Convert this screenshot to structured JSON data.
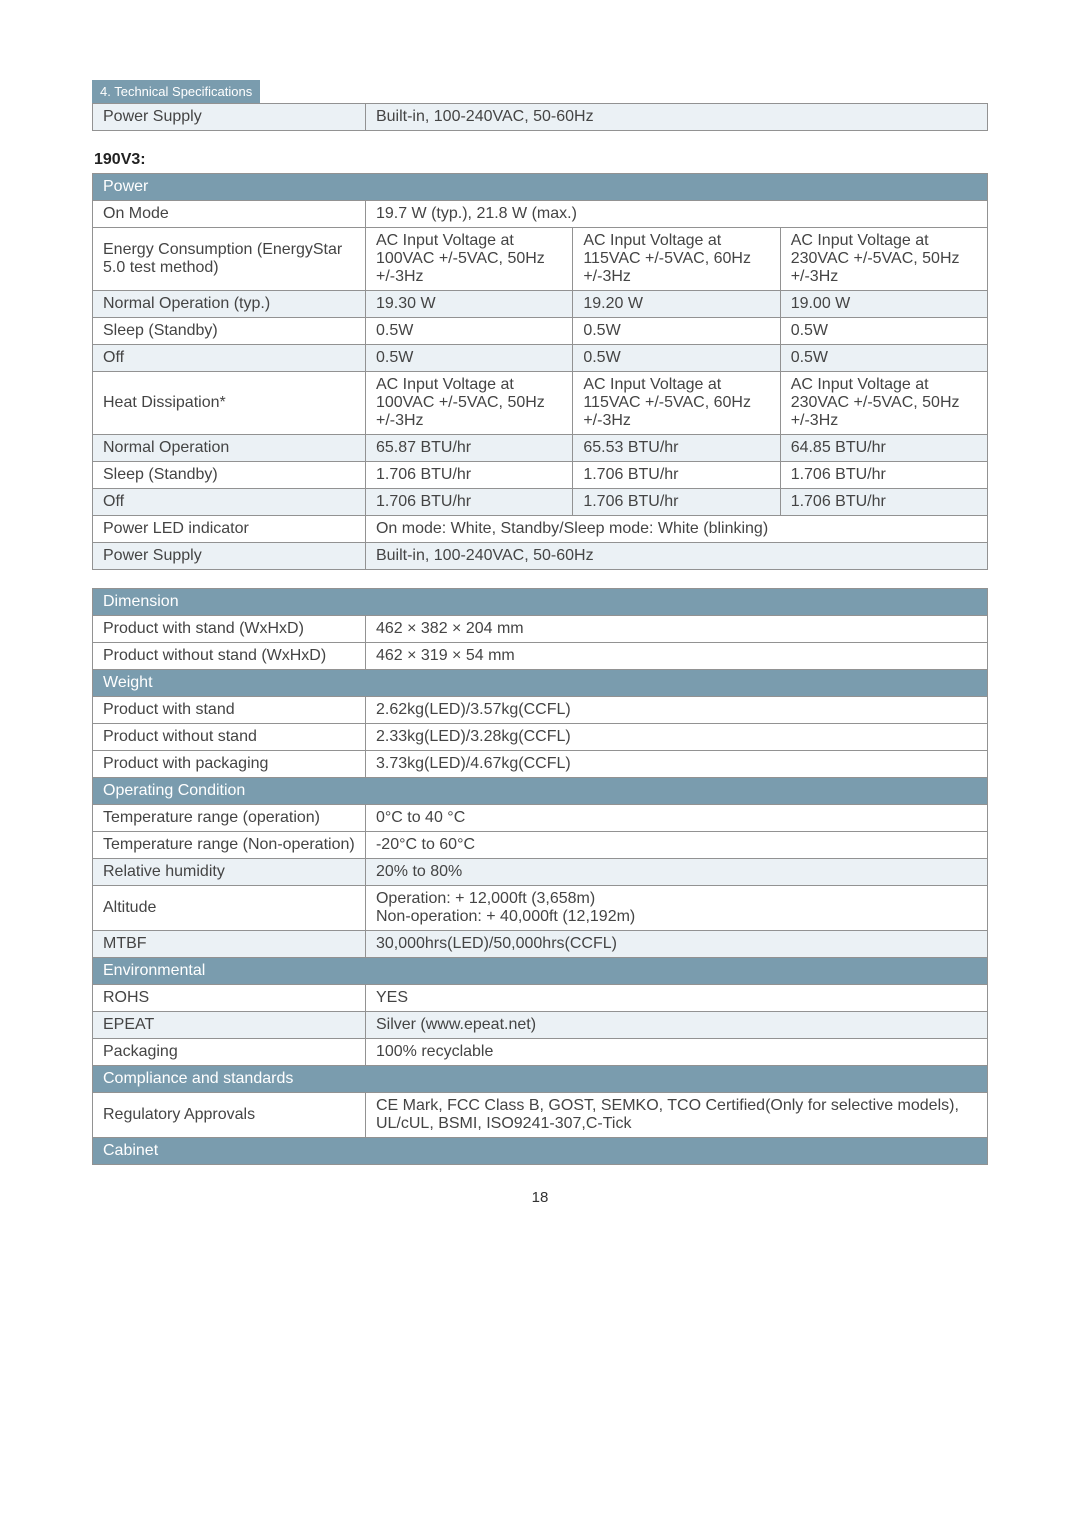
{
  "header": {
    "tab": "4. Technical Specifications"
  },
  "topRow": {
    "label": "Power Supply",
    "value": "Built-in, 100-240VAC, 50-60Hz"
  },
  "model": "190V3:",
  "power": {
    "heading": "Power",
    "rows": [
      {
        "label": "On Mode",
        "values": [
          "19.7 W (typ.), 21.8 W (max.)"
        ],
        "span": 3,
        "shade": false
      },
      {
        "label": "Energy Consumption (EnergyStar 5.0 test method)",
        "values": [
          "AC Input Voltage at 100VAC +/-5VAC, 50Hz +/-3Hz",
          "AC Input Voltage at 115VAC +/-5VAC, 60Hz +/-3Hz",
          "AC Input Voltage at 230VAC +/-5VAC, 50Hz +/-3Hz"
        ],
        "shade": false
      },
      {
        "label": "Normal Operation (typ.)",
        "values": [
          "19.30 W",
          "19.20 W",
          "19.00 W"
        ],
        "shade": true
      },
      {
        "label": "Sleep (Standby)",
        "values": [
          "0.5W",
          "0.5W",
          "0.5W"
        ],
        "shade": false
      },
      {
        "label": "Off",
        "values": [
          "0.5W",
          "0.5W",
          "0.5W"
        ],
        "shade": true
      },
      {
        "label": "Heat Dissipation*",
        "values": [
          "AC Input Voltage at 100VAC +/-5VAC, 50Hz +/-3Hz",
          "AC Input Voltage at 115VAC +/-5VAC, 60Hz +/-3Hz",
          "AC Input Voltage at 230VAC +/-5VAC, 50Hz +/-3Hz"
        ],
        "shade": false
      },
      {
        "label": "Normal Operation",
        "values": [
          "65.87 BTU/hr",
          "65.53 BTU/hr",
          "64.85 BTU/hr"
        ],
        "shade": true
      },
      {
        "label": "Sleep (Standby)",
        "values": [
          "1.706 BTU/hr",
          "1.706 BTU/hr",
          "1.706 BTU/hr"
        ],
        "shade": false
      },
      {
        "label": "Off",
        "values": [
          "1.706 BTU/hr",
          "1.706 BTU/hr",
          "1.706 BTU/hr"
        ],
        "shade": true
      },
      {
        "label": "Power LED indicator",
        "values": [
          "On mode: White, Standby/Sleep mode: White (blinking)"
        ],
        "span": 3,
        "shade": false
      },
      {
        "label": "Power Supply",
        "values": [
          "Built-in, 100-240VAC, 50-60Hz"
        ],
        "span": 3,
        "shade": true
      }
    ]
  },
  "blocks": [
    {
      "heading": "Dimension",
      "rows": [
        {
          "label": "Product with stand (WxHxD)",
          "value": "462 × 382 × 204 mm",
          "shade": false
        },
        {
          "label": "Product without stand (WxHxD)",
          "value": "462 × 319 × 54 mm",
          "shade": false
        }
      ]
    },
    {
      "heading": "Weight",
      "rows": [
        {
          "label": "Product with stand",
          "value": "2.62kg(LED)/3.57kg(CCFL)",
          "shade": false
        },
        {
          "label": "Product without stand",
          "value": "2.33kg(LED)/3.28kg(CCFL)",
          "shade": false
        },
        {
          "label": "Product with packaging",
          "value": "3.73kg(LED)/4.67kg(CCFL)",
          "shade": false
        }
      ]
    },
    {
      "heading": "Operating Condition",
      "rows": [
        {
          "label": "Temperature range (operation)",
          "value": "0°C to 40 °C",
          "shade": false
        },
        {
          "label": "Temperature range (Non-operation)",
          "value": "-20°C to 60°C",
          "shade": false
        },
        {
          "label": "Relative humidity",
          "value": "20% to 80%",
          "shade": true
        },
        {
          "label": "Altitude",
          "value": "Operation: + 12,000ft (3,658m)\nNon-operation: + 40,000ft (12,192m)",
          "shade": false
        },
        {
          "label": "MTBF",
          "value": "30,000hrs(LED)/50,000hrs(CCFL)",
          "shade": true
        }
      ]
    },
    {
      "heading": "Environmental",
      "rows": [
        {
          "label": "ROHS",
          "value": "YES",
          "shade": false
        },
        {
          "label": "EPEAT",
          "value": "Silver (www.epeat.net)",
          "shade": true
        },
        {
          "label": "Packaging",
          "value": "100% recyclable",
          "shade": false
        }
      ]
    },
    {
      "heading": "Compliance and standards",
      "rows": [
        {
          "label": "Regulatory Approvals",
          "value": "CE Mark, FCC Class B, GOST, SEMKO, TCO Certified(Only for selective models), UL/cUL,  BSMI, ISO9241-307,C-Tick",
          "shade": false
        }
      ]
    },
    {
      "heading": "Cabinet",
      "rows": []
    }
  ],
  "pageNumber": "18"
}
